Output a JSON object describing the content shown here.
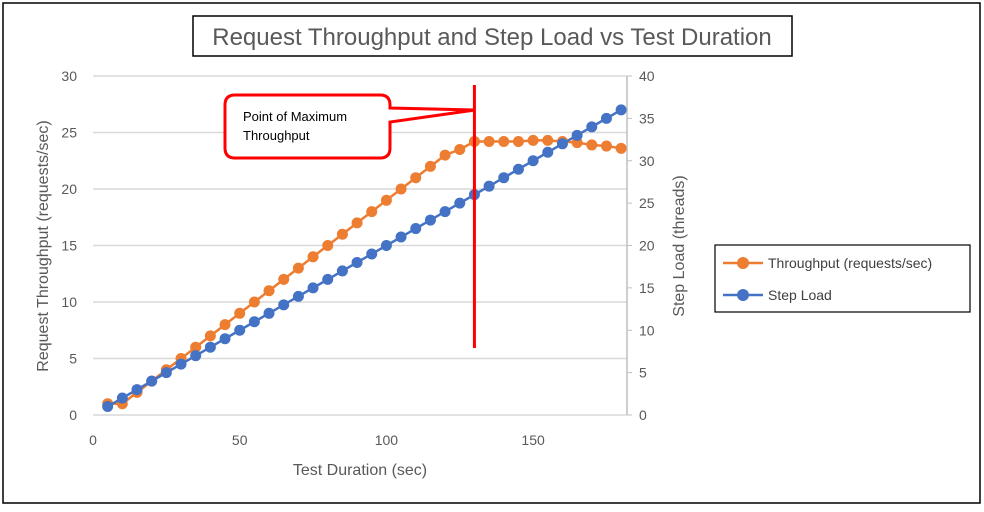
{
  "chart_data": {
    "type": "line",
    "title": "Request Throughput and Step Load vs Test Duration",
    "xlabel": "Test Duration (sec)",
    "ylabel": "Request Throughput (requests/sec)",
    "y2label": "Step Load (threads)",
    "xlim": [
      0,
      182
    ],
    "ylim": [
      0,
      30
    ],
    "y2lim": [
      0,
      40
    ],
    "xticks": [
      0,
      50,
      100,
      150
    ],
    "yticks": [
      0,
      5,
      10,
      15,
      20,
      25,
      30
    ],
    "y2ticks": [
      0,
      5,
      10,
      15,
      20,
      25,
      30,
      35,
      40
    ],
    "grid": true,
    "legend_position": "right",
    "x": [
      5,
      10,
      15,
      20,
      25,
      30,
      35,
      40,
      45,
      50,
      55,
      60,
      65,
      70,
      75,
      80,
      85,
      90,
      95,
      100,
      105,
      110,
      115,
      120,
      125,
      130,
      135,
      140,
      145,
      150,
      155,
      160,
      165,
      170,
      175,
      180
    ],
    "series": [
      {
        "name": "Throughput (requests/sec)",
        "axis": "left",
        "color": "#ED7D31",
        "values": [
          1,
          1,
          2,
          3,
          4,
          5,
          6,
          7,
          8,
          9,
          10,
          11,
          12,
          13,
          14,
          15,
          16,
          17,
          18,
          19,
          20,
          21,
          22,
          23,
          23.5,
          24.2,
          24.2,
          24.2,
          24.2,
          24.3,
          24.3,
          24.2,
          24.1,
          23.9,
          23.8,
          23.6
        ]
      },
      {
        "name": "Step Load",
        "axis": "right",
        "color": "#4472C4",
        "values": [
          1,
          2,
          3,
          4,
          5,
          6,
          7,
          8,
          9,
          10,
          11,
          12,
          13,
          14,
          15,
          16,
          17,
          18,
          19,
          20,
          21,
          22,
          23,
          24,
          25,
          26,
          27,
          28,
          29,
          30,
          31,
          32,
          33,
          34,
          35,
          36
        ]
      }
    ],
    "annotation": {
      "text_line1": "Point of Maximum",
      "text_line2": "Throughput",
      "x": 130
    }
  }
}
